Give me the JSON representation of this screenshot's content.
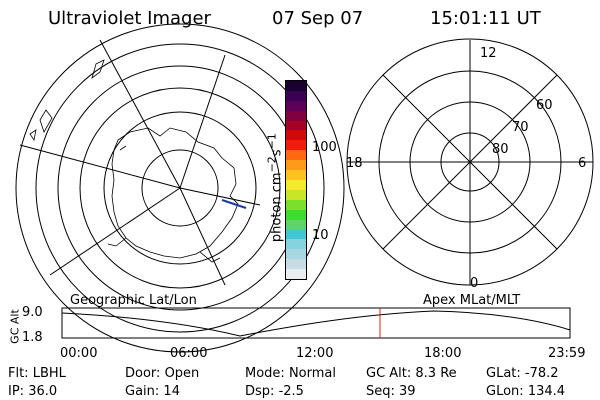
{
  "header": {
    "instrument": "Ultraviolet Imager",
    "date": "07 Sep 07",
    "time": "15:01:11 UT"
  },
  "geo_map": {
    "caption": "Geographic Lat/Lon"
  },
  "colorbar": {
    "unit_text": "photon cm",
    "unit_sup1": "−2",
    "unit_mid": "s",
    "unit_sup2": "−1",
    "tick_100": "100",
    "tick_10": "10",
    "colors": [
      "#e8eef2",
      "#c8dce6",
      "#a6d7e3",
      "#86d2df",
      "#3fc7d6",
      "#5fd26a",
      "#3ddc31",
      "#7ae02c",
      "#c9e528",
      "#f2ea2b",
      "#ffc21f",
      "#ff9a1a",
      "#ff6a10",
      "#f01d0c",
      "#d00a0a",
      "#a60024",
      "#7f0040",
      "#5c0058",
      "#3a0052",
      "#1a0032"
    ]
  },
  "apex_map": {
    "caption": "Apex MLat/MLT",
    "label_12": "12",
    "label_0": "0",
    "label_18": "18",
    "label_6": "6",
    "lat_60": "60",
    "lat_70": "70",
    "lat_80": "80"
  },
  "altitude_plot": {
    "ylabel": "GC Alt",
    "y_top": "9.0",
    "y_bottom": "1.8",
    "x_ticks": [
      "00:00",
      "06:00",
      "12:00",
      "18:00",
      "23:59"
    ],
    "marker_time": "15:01"
  },
  "status": {
    "flt_label": "Flt:",
    "flt_value": "LBHL",
    "ip_label": "IP:",
    "ip_value": "36.0",
    "door_label": "Door:",
    "door_value": "Open",
    "gain_label": "Gain:",
    "gain_value": "14",
    "mode_label": "Mode:",
    "mode_value": "Normal",
    "dsp_label": "Dsp:",
    "dsp_value": "-2.5",
    "gcalt_label": "GC Alt:",
    "gcalt_value": "8.3 Re",
    "seq_label": "Seq:",
    "seq_value": "39",
    "glat_label": "GLat:",
    "glat_value": "-78.2",
    "glon_label": "GLon:",
    "glon_value": "134.4"
  }
}
